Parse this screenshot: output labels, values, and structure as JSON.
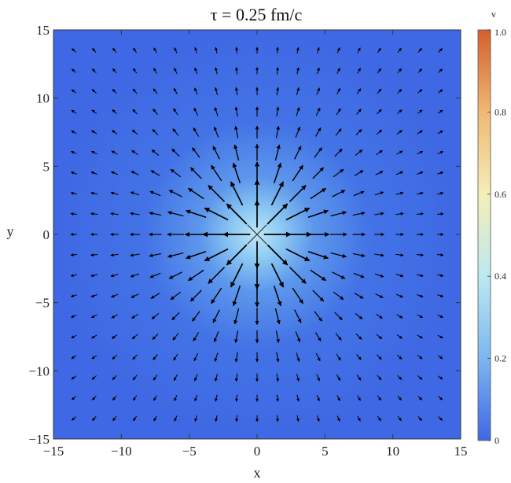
{
  "chart_data": {
    "type": "heatmap",
    "title": "τ = 0.25 fm/c",
    "xlabel": "x",
    "ylabel": "y",
    "xlim": [
      -15,
      15
    ],
    "ylim": [
      -15,
      15
    ],
    "x_ticks": [
      -15,
      -10,
      -5,
      0,
      5,
      10,
      15
    ],
    "y_ticks": [
      -15,
      -10,
      -5,
      0,
      5,
      10,
      15
    ],
    "x_tick_labels": [
      "−15",
      "−10",
      "−5",
      "0",
      "5",
      "10",
      "15"
    ],
    "y_tick_labels": [
      "−15",
      "−10",
      "−5",
      "0",
      "5",
      "10",
      "15"
    ],
    "colorbar": {
      "label": "v",
      "range": [
        0,
        1.0
      ],
      "ticks": [
        0,
        0.2,
        0.4,
        0.6,
        0.8,
        1.0
      ],
      "tick_labels": [
        "0",
        "0.2",
        "0.4",
        "0.6",
        "0.8",
        "1.0"
      ],
      "colors": [
        "#3f68e6",
        "#6fa8f0",
        "#b5e4f2",
        "#f7edb0",
        "#efa25e",
        "#d4602a"
      ]
    },
    "field": {
      "description_peak_v_at_origin": 0.3,
      "background_v": 0.05,
      "vector_grid": {
        "x_values": [
          -13.5,
          -12,
          -10.5,
          -9,
          -7.5,
          -6,
          -4.5,
          -3,
          -1.5,
          0,
          1.5,
          3,
          4.5,
          6,
          7.5,
          9,
          10.5,
          12,
          13.5
        ],
        "y_values": [
          -13.5,
          -12,
          -10.5,
          -9,
          -7.5,
          -6,
          -4.5,
          -3,
          -1.5,
          0,
          1.5,
          3,
          4.5,
          6,
          7.5,
          9,
          10.5,
          12,
          13.5
        ],
        "direction": "radially outward"
      }
    }
  }
}
